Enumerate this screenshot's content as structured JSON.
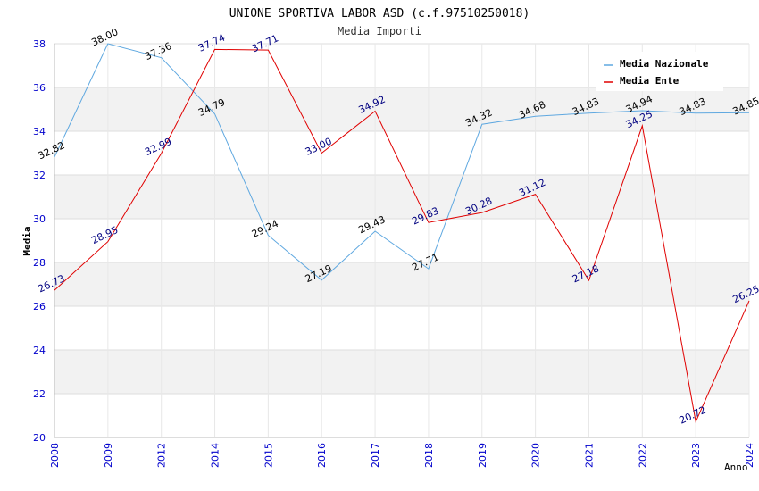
{
  "chart_data": {
    "type": "line",
    "title": "UNIONE SPORTIVA LABOR ASD (c.f.97510250018)",
    "subtitle": "Media Importi",
    "xlabel": "Anno",
    "ylabel": "Media",
    "categories": [
      "2008",
      "2009",
      "2012",
      "2014",
      "2015",
      "2016",
      "2017",
      "2018",
      "2019",
      "2020",
      "2021",
      "2022",
      "2023",
      "2024"
    ],
    "ylim": [
      20,
      38
    ],
    "yticks": [
      "20",
      "22",
      "24",
      "26",
      "28",
      "30",
      "32",
      "34",
      "36",
      "38"
    ],
    "grid": true,
    "legend_position": "top-right",
    "series": [
      {
        "name": "Media Nazionale",
        "color": "#5fa8e0",
        "label_color": "#000000",
        "values": [
          32.82,
          38.0,
          37.36,
          34.79,
          29.24,
          27.19,
          29.43,
          27.71,
          34.32,
          34.68,
          34.83,
          34.94,
          34.83,
          34.85
        ],
        "labels": [
          "32.82",
          "38.00",
          "37.36",
          "34.79",
          "29.24",
          "27.19",
          "29.43",
          "27.71",
          "34.32",
          "34.68",
          "34.83",
          "34.94",
          "34.83",
          "34.85"
        ]
      },
      {
        "name": "Media Ente",
        "color": "#e00000",
        "label_color": "#000080",
        "values": [
          26.73,
          28.95,
          32.99,
          37.74,
          37.71,
          33.0,
          34.92,
          29.83,
          30.28,
          31.12,
          27.18,
          34.25,
          20.72,
          26.25
        ],
        "labels": [
          "26.73",
          "28.95",
          "32.99",
          "37.74",
          "37.71",
          "33.00",
          "34.92",
          "29.83",
          "30.28",
          "31.12",
          "27.18",
          "34.25",
          "20.72",
          "26.25"
        ]
      }
    ]
  }
}
